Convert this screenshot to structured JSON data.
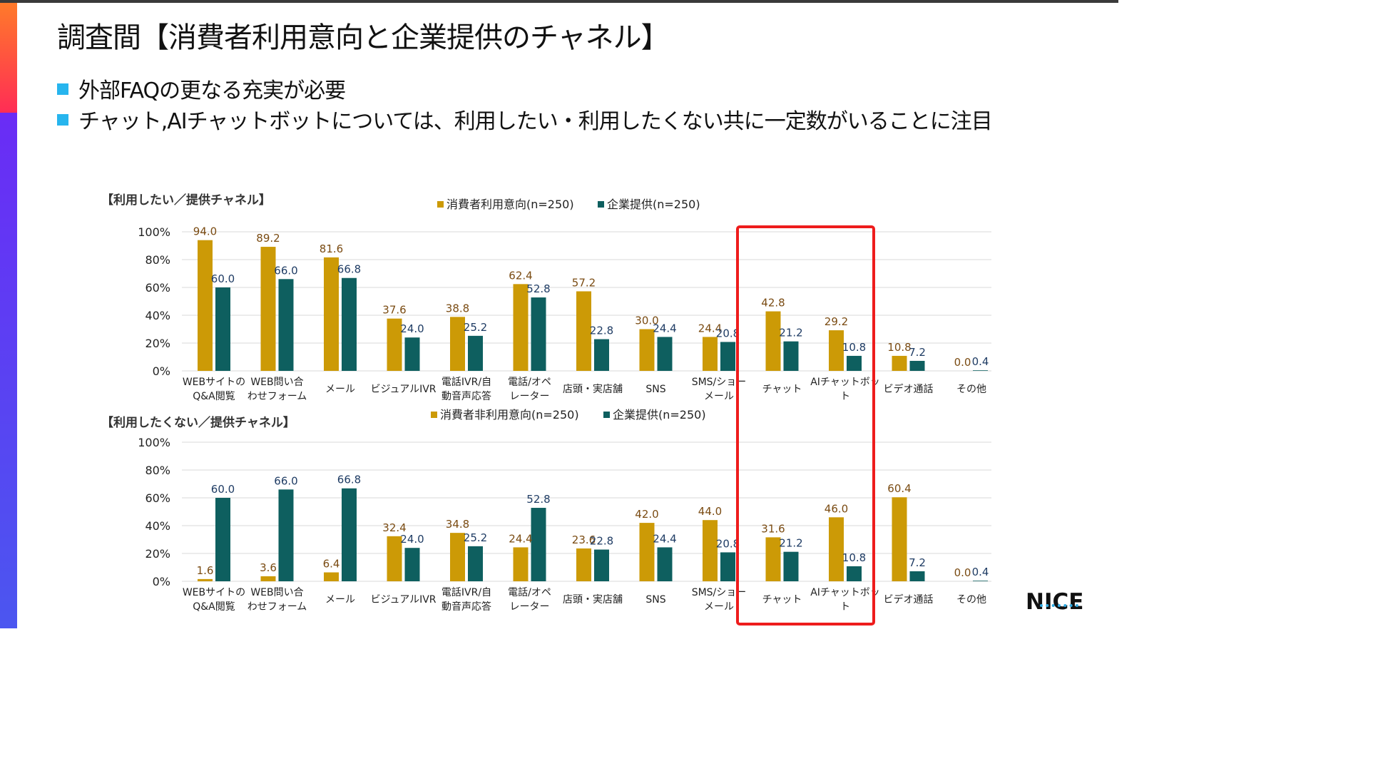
{
  "page": {
    "title": "調査間【消費者利用意向と企業提供のチャネル】",
    "bullets": [
      "外部FAQの更なる充実が必要",
      "チャット,AIチャットボットについては、利用したい・利用したくない共に一定数がいることに注目"
    ],
    "logo": "NICE"
  },
  "colors": {
    "consumer": "#CC9A06",
    "enterprise": "#0E5F5F",
    "consumer_label": "#7A4B12",
    "enterprise_label": "#1F3C64",
    "highlight": "#EE1C1C",
    "grid": "#D9D9D9",
    "bullet": "#27B5EE"
  },
  "chart_data": [
    {
      "type": "bar",
      "title": "【利用したい／提供チャネル】",
      "categories": [
        "WEBサイトの\nQ&A閲覧",
        "WEB問い合\nわせフォーム",
        "メール",
        "ビジュアルIVR",
        "電話IVR/自\n動音声応答",
        "電話/オペ\nレーター",
        "店頭・実店舗",
        "SNS",
        "SMS/ショー\nメール",
        "チャット",
        "AIチャットボッ\nト",
        "ビデオ通話",
        "その他"
      ],
      "series": [
        {
          "name": "消費者利用意向(n=250)",
          "values": [
            94.0,
            89.2,
            81.6,
            37.6,
            38.8,
            62.4,
            57.2,
            30.0,
            24.4,
            42.8,
            29.2,
            10.8,
            0.0
          ]
        },
        {
          "name": "企業提供(n=250)",
          "values": [
            60.0,
            66.0,
            66.8,
            24.0,
            25.2,
            52.8,
            22.8,
            24.4,
            20.8,
            21.2,
            10.8,
            7.2,
            0.4
          ]
        }
      ],
      "yticks": [
        "100%",
        "80%",
        "60%",
        "40%",
        "20%",
        "0%"
      ],
      "ylim": [
        0,
        100
      ],
      "legend": "top-center"
    },
    {
      "type": "bar",
      "title": "【利用したくない／提供チャネル】",
      "categories": [
        "WEBサイトの\nQ&A閲覧",
        "WEB問い合\nわせフォーム",
        "メール",
        "ビジュアルIVR",
        "電話IVR/自\n動音声応答",
        "電話/オペ\nレーター",
        "店頭・実店舗",
        "SNS",
        "SMS/ショー\nメール",
        "チャット",
        "AIチャットボッ\nト",
        "ビデオ通話",
        "その他"
      ],
      "series": [
        {
          "name": "消費者非利用意向(n=250)",
          "values": [
            1.6,
            3.6,
            6.4,
            32.4,
            34.8,
            24.4,
            23.6,
            42.0,
            44.0,
            31.6,
            46.0,
            60.4,
            0.0
          ]
        },
        {
          "name": "企業提供(n=250)",
          "values": [
            60.0,
            66.0,
            66.8,
            24.0,
            25.2,
            52.8,
            22.8,
            24.4,
            20.8,
            21.2,
            10.8,
            7.2,
            0.4
          ]
        }
      ],
      "yticks": [
        "100%",
        "80%",
        "60%",
        "40%",
        "20%",
        "0%"
      ],
      "ylim": [
        0,
        100
      ],
      "legend": "top-center"
    }
  ]
}
